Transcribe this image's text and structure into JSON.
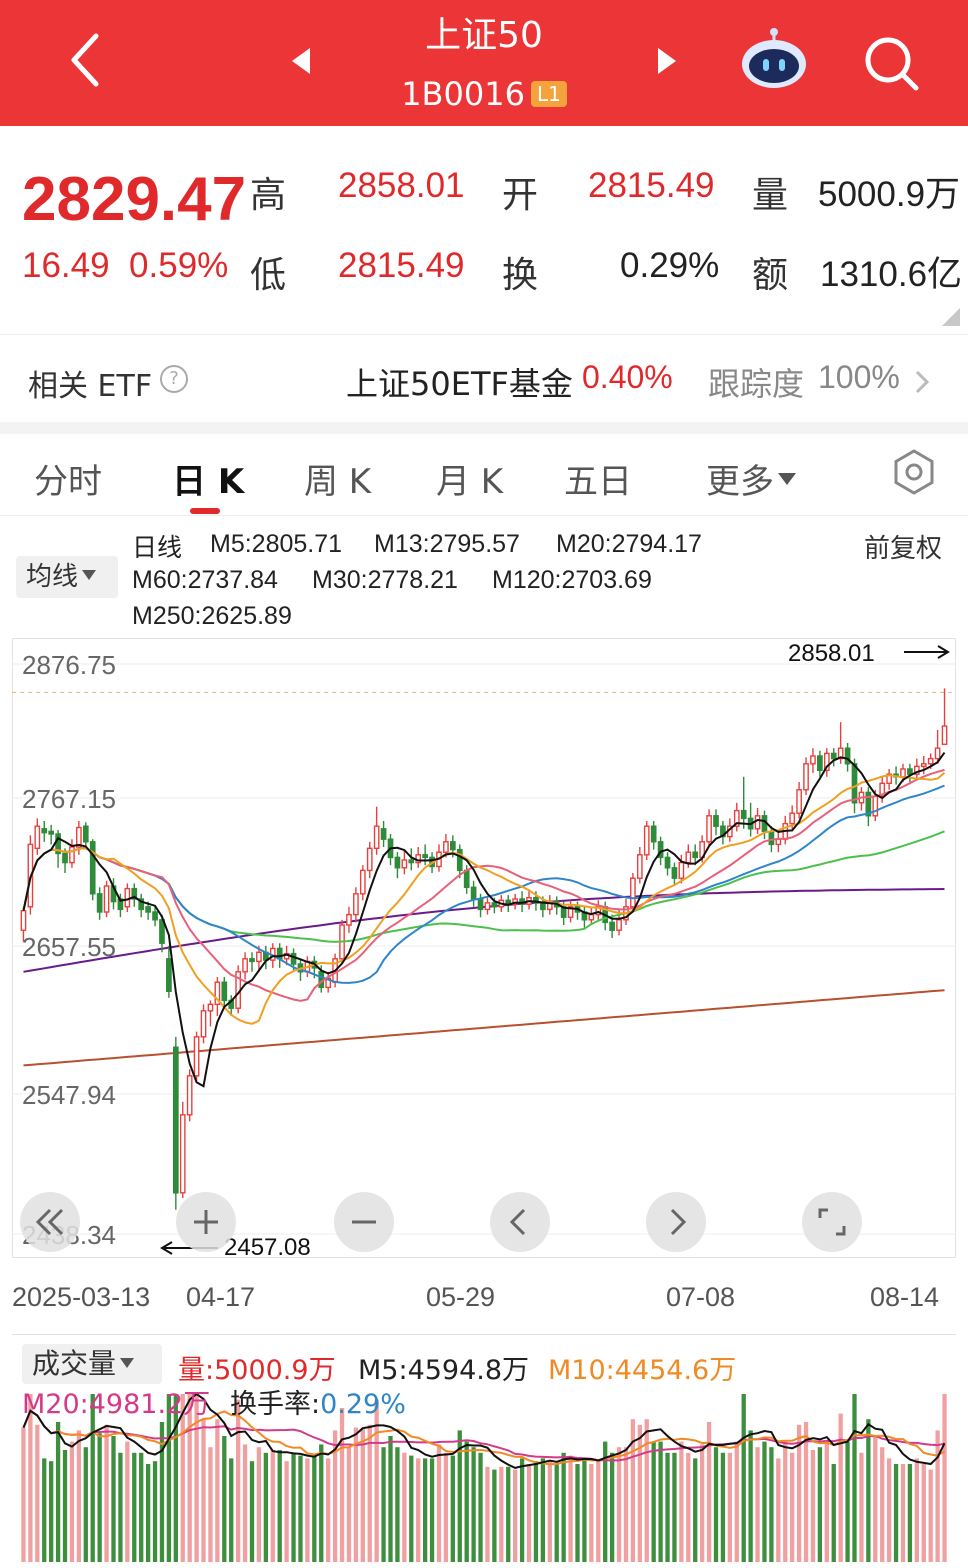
{
  "header": {
    "title": "上证50",
    "code": "1B0016",
    "level_badge": "L1",
    "bg_color": "#ec3537"
  },
  "quote": {
    "price": "2829.47",
    "change": "16.49",
    "change_pct": "0.59%",
    "high_label": "高",
    "high": "2858.01",
    "low_label": "低",
    "low": "2815.49",
    "open_label": "开",
    "open": "2815.49",
    "turnover_label": "换",
    "turnover": "0.29%",
    "volume_label": "量",
    "volume": "5000.9万",
    "amount_label": "额",
    "amount": "1310.6亿"
  },
  "etf": {
    "label": "相关 ETF",
    "name": "上证50ETF基金",
    "change_pct": "0.40%",
    "tracking_label": "跟踪度",
    "tracking": "100%"
  },
  "tabs": [
    {
      "label": "分时"
    },
    {
      "label": "日 K"
    },
    {
      "label": "周 K"
    },
    {
      "label": "月 K"
    },
    {
      "label": "五日"
    },
    {
      "label": "更多"
    }
  ],
  "active_tab": "日 K",
  "ma_legend": {
    "button": "均线",
    "period": "日线",
    "adjust": "前复权",
    "items": [
      {
        "label": "M5:2805.71",
        "color": "#111111"
      },
      {
        "label": "M13:2795.57",
        "color": "#f0a020"
      },
      {
        "label": "M20:2794.17",
        "color": "#e8607a"
      },
      {
        "label": "M60:2737.84",
        "color": "#4cc04c"
      },
      {
        "label": "M30:2778.21",
        "color": "#2e86c8"
      },
      {
        "label": "M120:2703.69",
        "color": "#6a1b8a"
      },
      {
        "label": "M250:2625.89",
        "color": "#b85030"
      }
    ]
  },
  "price_axis": [
    "2876.75",
    "2767.15",
    "2657.55",
    "2547.94",
    "2438.34"
  ],
  "date_axis": [
    "2025-03-13",
    "04-17",
    "05-29",
    "07-08",
    "08-14"
  ],
  "max_marker": "2858.01",
  "min_marker": "2457.08",
  "zoom_buttons": [
    "rewind",
    "zoom-in",
    "zoom-out",
    "left",
    "right",
    "fullscreen"
  ],
  "volume_panel": {
    "button": "成交量",
    "vol_label": "量:5000.9万",
    "m5_label": "M5:4594.8万",
    "m10_label": "M10:4454.6万",
    "m20_label": "M20:4981.2万",
    "turnover_label": "换手率:",
    "turnover_value": "0.29%"
  },
  "chart_data": {
    "type": "candlestick",
    "y_range": [
      2438.34,
      2876.75
    ],
    "up_color": "#e8403e",
    "down_color": "#2e8b3a",
    "candles": [
      [
        2672,
        2687,
        2663,
        2690
      ],
      [
        2690,
        2738,
        2684,
        2745
      ],
      [
        2735,
        2752,
        2730,
        2758
      ],
      [
        2750,
        2747,
        2740,
        2756
      ],
      [
        2748,
        2746,
        2738,
        2753
      ],
      [
        2746,
        2731,
        2720,
        2749
      ],
      [
        2731,
        2724,
        2716,
        2735
      ],
      [
        2724,
        2736,
        2720,
        2742
      ],
      [
        2736,
        2751,
        2730,
        2756
      ],
      [
        2752,
        2740,
        2735,
        2755
      ],
      [
        2740,
        2700,
        2695,
        2742
      ],
      [
        2700,
        2686,
        2680,
        2705
      ],
      [
        2686,
        2706,
        2682,
        2710
      ],
      [
        2706,
        2694,
        2688,
        2712
      ],
      [
        2696,
        2688,
        2682,
        2700
      ],
      [
        2690,
        2704,
        2686,
        2708
      ],
      [
        2704,
        2696,
        2690,
        2708
      ],
      [
        2696,
        2688,
        2682,
        2700
      ],
      [
        2690,
        2686,
        2680,
        2694
      ],
      [
        2686,
        2680,
        2675,
        2690
      ],
      [
        2680,
        2662,
        2655,
        2684
      ],
      [
        2650,
        2625,
        2620,
        2660
      ],
      [
        2582,
        2470,
        2457,
        2590
      ],
      [
        2470,
        2530,
        2466,
        2540
      ],
      [
        2530,
        2560,
        2525,
        2565
      ],
      [
        2560,
        2590,
        2555,
        2594
      ],
      [
        2590,
        2610,
        2585,
        2615
      ],
      [
        2610,
        2615,
        2598,
        2618
      ],
      [
        2615,
        2632,
        2606,
        2636
      ],
      [
        2632,
        2618,
        2612,
        2636
      ],
      [
        2618,
        2612,
        2606,
        2622
      ],
      [
        2612,
        2640,
        2608,
        2645
      ],
      [
        2640,
        2650,
        2634,
        2655
      ],
      [
        2650,
        2648,
        2640,
        2655
      ],
      [
        2648,
        2655,
        2640,
        2660
      ],
      [
        2655,
        2649,
        2642,
        2660
      ],
      [
        2649,
        2658,
        2643,
        2662
      ],
      [
        2658,
        2650,
        2643,
        2662
      ],
      [
        2650,
        2654,
        2645,
        2660
      ],
      [
        2654,
        2646,
        2640,
        2658
      ],
      [
        2646,
        2640,
        2633,
        2650
      ],
      [
        2640,
        2648,
        2636,
        2652
      ],
      [
        2648,
        2643,
        2635,
        2652
      ],
      [
        2640,
        2628,
        2624,
        2645
      ],
      [
        2628,
        2635,
        2624,
        2640
      ],
      [
        2632,
        2650,
        2628,
        2654
      ],
      [
        2650,
        2676,
        2646,
        2680
      ],
      [
        2676,
        2684,
        2670,
        2690
      ],
      [
        2684,
        2700,
        2678,
        2705
      ],
      [
        2700,
        2718,
        2695,
        2722
      ],
      [
        2718,
        2735,
        2712,
        2740
      ],
      [
        2735,
        2752,
        2730,
        2767
      ],
      [
        2750,
        2742,
        2736,
        2756
      ],
      [
        2742,
        2728,
        2722,
        2746
      ],
      [
        2728,
        2720,
        2712,
        2732
      ],
      [
        2720,
        2726,
        2715,
        2733
      ],
      [
        2726,
        2724,
        2718,
        2735
      ],
      [
        2724,
        2730,
        2720,
        2736
      ],
      [
        2730,
        2728,
        2722,
        2738
      ],
      [
        2728,
        2721,
        2716,
        2732
      ],
      [
        2721,
        2732,
        2717,
        2738
      ],
      [
        2732,
        2740,
        2728,
        2746
      ],
      [
        2740,
        2734,
        2728,
        2745
      ],
      [
        2734,
        2718,
        2712,
        2738
      ],
      [
        2718,
        2705,
        2700,
        2722
      ],
      [
        2705,
        2696,
        2690,
        2710
      ],
      [
        2696,
        2688,
        2682,
        2700
      ],
      [
        2688,
        2693,
        2684,
        2697
      ],
      [
        2693,
        2690,
        2685,
        2697
      ],
      [
        2690,
        2695,
        2686,
        2699
      ],
      [
        2695,
        2692,
        2686,
        2699
      ],
      [
        2692,
        2696,
        2688,
        2700
      ],
      [
        2696,
        2692,
        2686,
        2702
      ],
      [
        2692,
        2697,
        2688,
        2702
      ],
      [
        2697,
        2693,
        2687,
        2702
      ],
      [
        2693,
        2688,
        2682,
        2698
      ],
      [
        2688,
        2694,
        2684,
        2699
      ],
      [
        2694,
        2690,
        2684,
        2698
      ],
      [
        2690,
        2682,
        2676,
        2694
      ],
      [
        2682,
        2690,
        2678,
        2695
      ],
      [
        2690,
        2686,
        2680,
        2694
      ],
      [
        2686,
        2680,
        2674,
        2690
      ],
      [
        2680,
        2684,
        2676,
        2690
      ],
      [
        2684,
        2690,
        2680,
        2695
      ],
      [
        2690,
        2678,
        2672,
        2694
      ],
      [
        2678,
        2672,
        2666,
        2684
      ],
      [
        2672,
        2680,
        2668,
        2688
      ],
      [
        2680,
        2690,
        2676,
        2696
      ],
      [
        2690,
        2712,
        2686,
        2716
      ],
      [
        2712,
        2730,
        2708,
        2736
      ],
      [
        2730,
        2752,
        2726,
        2756
      ],
      [
        2752,
        2740,
        2734,
        2756
      ],
      [
        2740,
        2728,
        2722,
        2744
      ],
      [
        2728,
        2720,
        2714,
        2732
      ],
      [
        2720,
        2712,
        2706,
        2724
      ],
      [
        2712,
        2724,
        2708,
        2730
      ],
      [
        2724,
        2732,
        2720,
        2738
      ],
      [
        2732,
        2728,
        2722,
        2738
      ],
      [
        2728,
        2740,
        2724,
        2745
      ],
      [
        2740,
        2760,
        2736,
        2765
      ],
      [
        2760,
        2752,
        2745,
        2765
      ],
      [
        2752,
        2744,
        2738,
        2756
      ],
      [
        2744,
        2752,
        2740,
        2758
      ],
      [
        2752,
        2764,
        2748,
        2770
      ],
      [
        2764,
        2758,
        2750,
        2790
      ],
      [
        2758,
        2750,
        2744,
        2770
      ],
      [
        2750,
        2760,
        2746,
        2766
      ],
      [
        2760,
        2748,
        2742,
        2764
      ],
      [
        2748,
        2738,
        2732,
        2752
      ],
      [
        2738,
        2742,
        2732,
        2748
      ],
      [
        2742,
        2754,
        2738,
        2760
      ],
      [
        2754,
        2762,
        2750,
        2768
      ],
      [
        2762,
        2780,
        2758,
        2786
      ],
      [
        2780,
        2800,
        2776,
        2805
      ],
      [
        2800,
        2806,
        2793,
        2812
      ],
      [
        2806,
        2795,
        2790,
        2810
      ],
      [
        2795,
        2808,
        2790,
        2812
      ],
      [
        2808,
        2804,
        2798,
        2812
      ],
      [
        2804,
        2812,
        2800,
        2832
      ],
      [
        2812,
        2800,
        2794,
        2816
      ],
      [
        2800,
        2770,
        2762,
        2804
      ],
      [
        2770,
        2778,
        2764,
        2782
      ],
      [
        2778,
        2760,
        2752,
        2782
      ],
      [
        2760,
        2775,
        2756,
        2780
      ],
      [
        2775,
        2785,
        2770,
        2790
      ],
      [
        2785,
        2792,
        2780,
        2796
      ],
      [
        2792,
        2790,
        2784,
        2798
      ],
      [
        2790,
        2796,
        2786,
        2800
      ],
      [
        2796,
        2792,
        2786,
        2800
      ],
      [
        2792,
        2798,
        2788,
        2804
      ],
      [
        2798,
        2800,
        2792,
        2806
      ],
      [
        2800,
        2804,
        2796,
        2808
      ],
      [
        2804,
        2812,
        2800,
        2826
      ],
      [
        2815,
        2829,
        2815,
        2858
      ]
    ]
  }
}
